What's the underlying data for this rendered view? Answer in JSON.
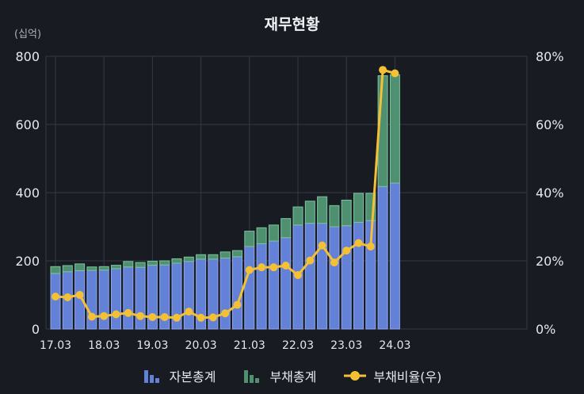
{
  "title": "재무현황",
  "unit_label": "(십억)",
  "colors": {
    "equity": "#6381d6",
    "equity_edge": "#8fa6ea",
    "debt": "#4f9070",
    "debt_edge": "#7cc49e",
    "ratio": "#f4c036",
    "grid": "#343944",
    "axis_text": "#e6e8ee",
    "background": "#181b22"
  },
  "legend": {
    "equity": "자본총계",
    "debt": "부채총계",
    "ratio": "부채비율(우)"
  },
  "chart_data": {
    "type": "bar",
    "stacked": true,
    "title": "재무현황",
    "ylabel_left": "(십억)",
    "ylim_left": [
      0,
      800
    ],
    "yticks_left": [
      "0",
      "200",
      "400",
      "600",
      "800"
    ],
    "ylim_right": [
      0,
      80
    ],
    "yticks_right": [
      "0%",
      "20%",
      "40%",
      "60%",
      "80%"
    ],
    "x_tick_labels": [
      "17.03",
      "18.03",
      "19.03",
      "20.03",
      "21.03",
      "22.03",
      "23.03",
      "24.03"
    ],
    "x_tick_positions": [
      0,
      4,
      8,
      12,
      16,
      20,
      24,
      28
    ],
    "grid": true,
    "legend_position": "bottom",
    "series": [
      {
        "name": "자본총계",
        "kind": "bar",
        "values": [
          163,
          168,
          171,
          172,
          173,
          177,
          182,
          181,
          187,
          188,
          193,
          198,
          205,
          205,
          208,
          212,
          242,
          250,
          258,
          268,
          305,
          310,
          310,
          300,
          303,
          313,
          318,
          418,
          428
        ]
      },
      {
        "name": "부채총계",
        "kind": "bar",
        "values": [
          20,
          18,
          20,
          10,
          10,
          10,
          16,
          14,
          12,
          12,
          13,
          13,
          13,
          13,
          18,
          18,
          45,
          47,
          47,
          56,
          53,
          65,
          78,
          62,
          75,
          85,
          80,
          325,
          318
        ]
      },
      {
        "name": "부채비율(우)",
        "kind": "line",
        "axis": "right",
        "values": [
          9.5,
          9.3,
          10.0,
          3.6,
          3.8,
          4.3,
          4.7,
          3.8,
          3.5,
          3.5,
          3.3,
          5.1,
          3.3,
          3.4,
          4.6,
          7.1,
          17.3,
          18.1,
          18.1,
          18.6,
          15.8,
          20.1,
          24.5,
          19.5,
          23.0,
          25.2,
          24.2,
          76.0,
          75.0
        ]
      }
    ]
  }
}
